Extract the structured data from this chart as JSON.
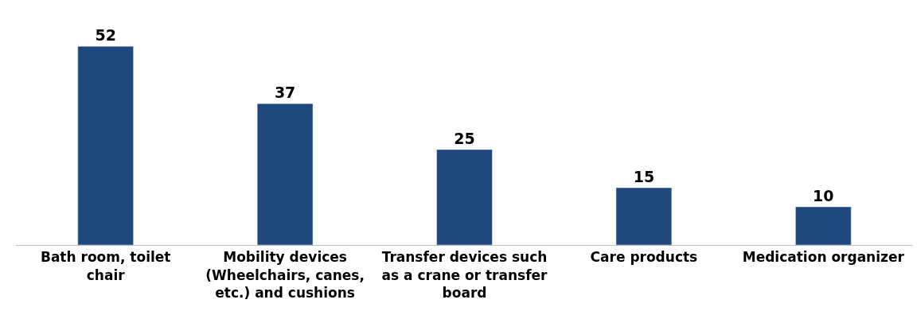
{
  "chart_data": {
    "type": "bar",
    "categories": [
      "Bath room, toilet chair",
      "Mobility devices (Wheelchairs, canes, etc.) and cushions",
      "Transfer devices such as a crane or transfer board",
      "Care products",
      "Medication organizer"
    ],
    "values": [
      52,
      37,
      25,
      15,
      10
    ],
    "color": "#1f497d",
    "data_labels": true
  }
}
